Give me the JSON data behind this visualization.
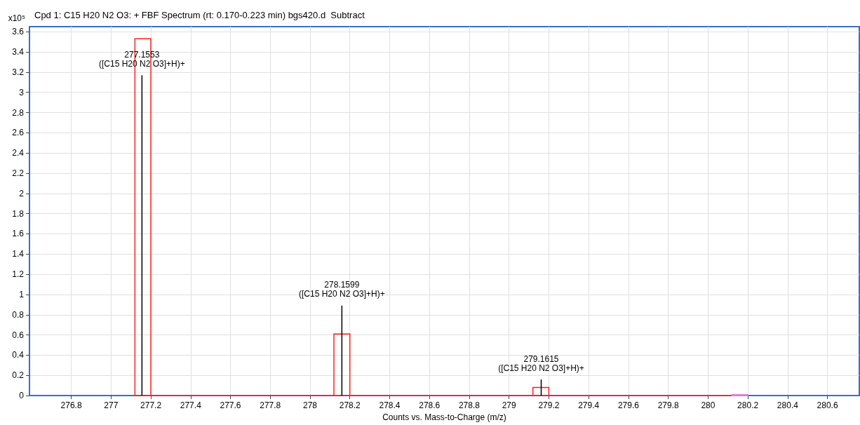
{
  "chart_data": {
    "type": "bar",
    "title": "Cpd 1: C15 H20 N2 O3: + FBF Spectrum (rt: 0.170-0.223 min) bgs420.d  Subtract",
    "xlabel": "Counts vs. Mass-to-Charge (m/z)",
    "ylabel": "x10⁵",
    "series": [
      {
        "type": "histogram",
        "bins": [
          277.12,
          277.2,
          278.12,
          278.2,
          279.12,
          279.2,
          280.12,
          280.2
        ],
        "values": [
          3.53,
          0,
          0.61,
          0,
          0.08,
          0,
          0.01
        ],
        "colors": [
          "#ff2020",
          "#ff2020",
          "#ff2020",
          "#ff2020",
          "#ff2020",
          "#ff2020",
          "#e080e0"
        ]
      },
      {
        "x": [
          277.1553,
          278.1599,
          279.1615
        ],
        "values": [
          3.17,
          0.89,
          0.16
        ],
        "color": "#000000"
      }
    ],
    "annotations": [
      {
        "text": "277.1553\n([C15 H20 N2 O3]+H)+",
        "x": 277.1553,
        "y": 3.17
      },
      {
        "text": "278.1599\n([C15 H20 N2 O3]+H)+",
        "x": 278.1599,
        "y": 0.89
      },
      {
        "text": "279.1615\n([C15 H20 N2 O3]+H)+",
        "x": 279.1615,
        "y": 0.16
      }
    ],
    "xlim": [
      276.59,
      280.76
    ],
    "xticks": [
      276.8,
      277,
      277.2,
      277.4,
      277.6,
      277.8,
      278,
      278.2,
      278.4,
      278.6,
      278.8,
      279,
      279.2,
      279.4,
      279.6,
      279.8,
      280,
      280.2,
      280.4,
      280.6
    ],
    "ylim": [
      0,
      3.65
    ],
    "yticks": [
      0,
      0.2,
      0.4,
      0.6,
      0.8,
      1,
      1.2,
      1.4,
      1.6,
      1.8,
      2,
      2.2,
      2.4,
      2.6,
      2.8,
      3,
      3.2,
      3.4,
      3.6
    ],
    "grid": true
  }
}
